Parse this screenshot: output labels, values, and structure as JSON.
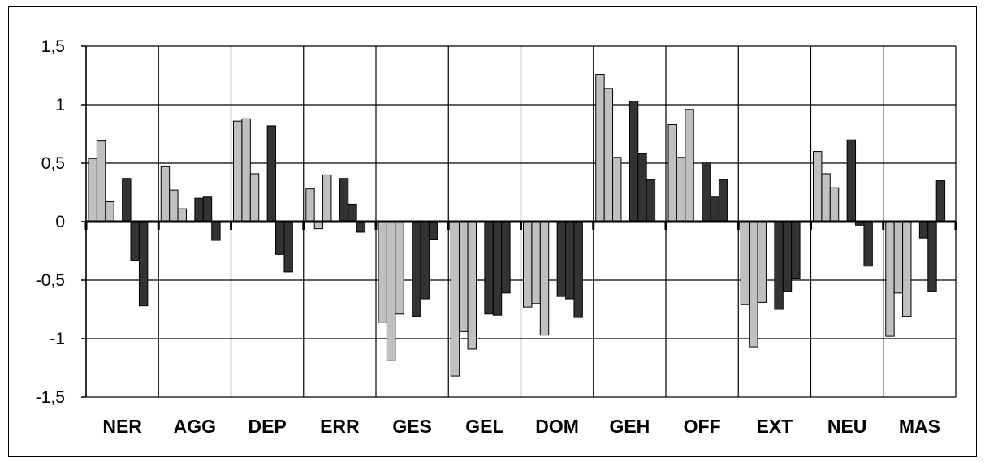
{
  "chart_data": {
    "type": "bar",
    "categories": [
      "NER",
      "AGG",
      "DEP",
      "ERR",
      "GES",
      "GEL",
      "DOM",
      "GEH",
      "OFF",
      "EXT",
      "NEU",
      "MAS"
    ],
    "series_colors": [
      "#c0c0c0",
      "#c0c0c0",
      "#c0c0c0",
      "#c0c0c0",
      "#333333",
      "#333333",
      "#333333",
      "#333333"
    ],
    "series": [
      {
        "values": [
          0.54,
          0.47,
          0.86,
          0.28,
          -0.86,
          -1.32,
          -0.73,
          1.26,
          0.83,
          -0.71,
          0.6,
          -0.98
        ]
      },
      {
        "values": [
          0.69,
          0.27,
          0.88,
          -0.06,
          -1.19,
          -0.94,
          -0.7,
          1.14,
          0.55,
          -1.07,
          0.41,
          -0.61
        ]
      },
      {
        "values": [
          0.17,
          0.11,
          0.41,
          0.4,
          -0.79,
          -1.09,
          -0.97,
          0.55,
          0.96,
          -0.69,
          0.29,
          -0.81
        ]
      },
      {
        "values": [
          0.0,
          0.0,
          0.0,
          0.0,
          0.0,
          0.0,
          0.0,
          0.0,
          0.0,
          0.0,
          0.0,
          0.0
        ]
      },
      {
        "values": [
          0.37,
          0.2,
          0.82,
          0.37,
          -0.81,
          -0.79,
          -0.64,
          1.03,
          0.51,
          -0.75,
          0.7,
          -0.14
        ]
      },
      {
        "values": [
          -0.33,
          0.21,
          -0.28,
          0.15,
          -0.66,
          -0.8,
          -0.66,
          0.58,
          0.21,
          -0.6,
          -0.03,
          -0.6
        ]
      },
      {
        "values": [
          -0.72,
          -0.16,
          -0.43,
          -0.09,
          -0.15,
          -0.61,
          -0.82,
          0.36,
          0.36,
          -0.49,
          -0.38,
          0.35
        ]
      },
      {
        "values": [
          0.0,
          0.0,
          0.0,
          0.0,
          0.0,
          0.0,
          0.0,
          0.0,
          0.0,
          0.0,
          0.0,
          0.0
        ]
      }
    ],
    "yticks": [
      "1,5",
      "1",
      "0,5",
      "0",
      "-0,5",
      "-1",
      "-1,5"
    ],
    "ytick_values": [
      1.5,
      1,
      0.5,
      0,
      -0.5,
      -1,
      -1.5
    ],
    "ylim": [
      -1.5,
      1.5
    ],
    "title": "",
    "xlabel": "",
    "ylabel": "",
    "grid": true,
    "legend": "none"
  }
}
